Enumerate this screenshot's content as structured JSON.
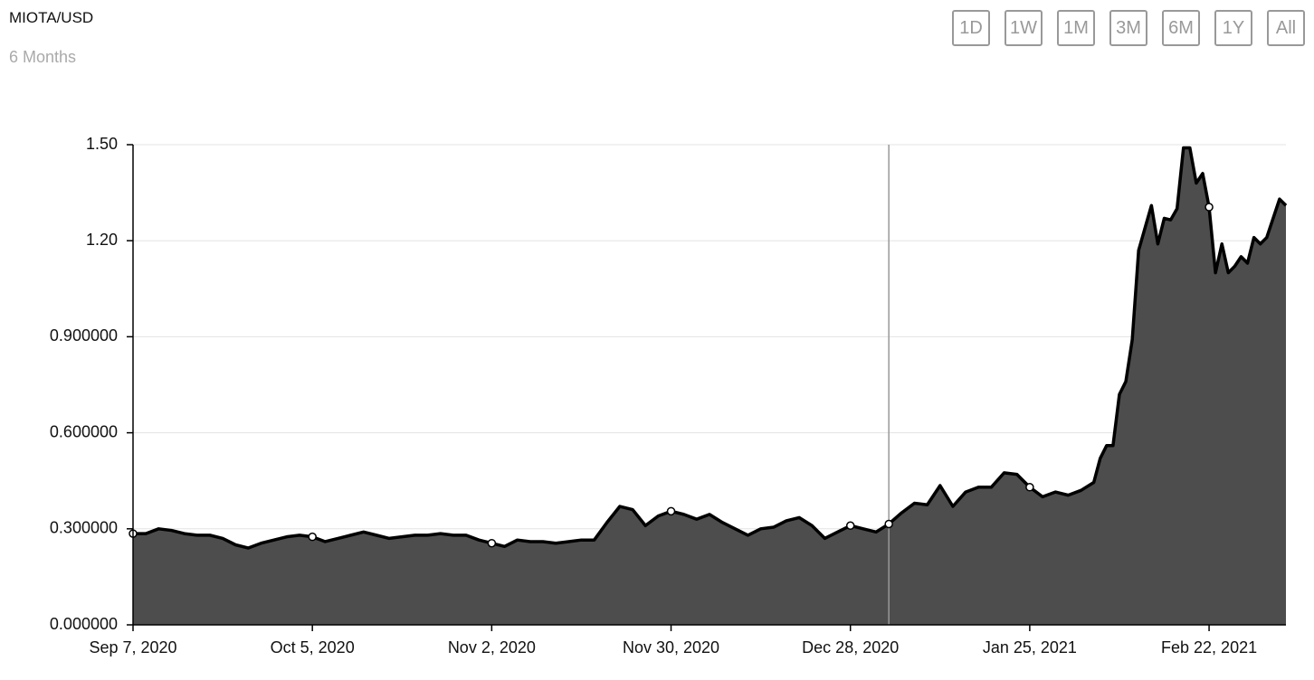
{
  "controls": {
    "range_buttons": [
      "1D",
      "1W",
      "1M",
      "3M",
      "6M",
      "1Y",
      "All"
    ]
  },
  "chart_data": {
    "type": "area",
    "title": "MIOTA/USD",
    "subtitle": "6 Months",
    "x": [
      "2020-09-07",
      "2020-09-09",
      "2020-09-11",
      "2020-09-13",
      "2020-09-15",
      "2020-09-17",
      "2020-09-19",
      "2020-09-21",
      "2020-09-23",
      "2020-09-25",
      "2020-09-27",
      "2020-09-29",
      "2020-10-01",
      "2020-10-03",
      "2020-10-05",
      "2020-10-07",
      "2020-10-09",
      "2020-10-11",
      "2020-10-13",
      "2020-10-15",
      "2020-10-17",
      "2020-10-19",
      "2020-10-21",
      "2020-10-23",
      "2020-10-25",
      "2020-10-27",
      "2020-10-29",
      "2020-10-31",
      "2020-11-02",
      "2020-11-04",
      "2020-11-06",
      "2020-11-08",
      "2020-11-10",
      "2020-11-12",
      "2020-11-14",
      "2020-11-16",
      "2020-11-18",
      "2020-11-20",
      "2020-11-22",
      "2020-11-24",
      "2020-11-26",
      "2020-11-28",
      "2020-11-30",
      "2020-12-02",
      "2020-12-04",
      "2020-12-06",
      "2020-12-08",
      "2020-12-10",
      "2020-12-12",
      "2020-12-14",
      "2020-12-16",
      "2020-12-18",
      "2020-12-20",
      "2020-12-22",
      "2020-12-24",
      "2020-12-26",
      "2020-12-28",
      "2020-12-30",
      "2021-01-01",
      "2021-01-03",
      "2021-01-05",
      "2021-01-07",
      "2021-01-09",
      "2021-01-11",
      "2021-01-13",
      "2021-01-15",
      "2021-01-17",
      "2021-01-19",
      "2021-01-21",
      "2021-01-23",
      "2021-01-25",
      "2021-01-27",
      "2021-01-29",
      "2021-01-31",
      "2021-02-02",
      "2021-02-04",
      "2021-02-05",
      "2021-02-06",
      "2021-02-07",
      "2021-02-08",
      "2021-02-09",
      "2021-02-10",
      "2021-02-11",
      "2021-02-12",
      "2021-02-13",
      "2021-02-14",
      "2021-02-15",
      "2021-02-16",
      "2021-02-17",
      "2021-02-18",
      "2021-02-19",
      "2021-02-20",
      "2021-02-21",
      "2021-02-22",
      "2021-02-23",
      "2021-02-24",
      "2021-02-25",
      "2021-02-26",
      "2021-02-27",
      "2021-02-28",
      "2021-03-01",
      "2021-03-02",
      "2021-03-03",
      "2021-03-04",
      "2021-03-05",
      "2021-03-06"
    ],
    "values": [
      0.285,
      0.285,
      0.3,
      0.295,
      0.285,
      0.28,
      0.28,
      0.27,
      0.25,
      0.24,
      0.255,
      0.265,
      0.275,
      0.28,
      0.275,
      0.26,
      0.27,
      0.28,
      0.29,
      0.28,
      0.27,
      0.275,
      0.28,
      0.28,
      0.285,
      0.28,
      0.28,
      0.265,
      0.255,
      0.245,
      0.265,
      0.26,
      0.26,
      0.255,
      0.26,
      0.265,
      0.265,
      0.32,
      0.37,
      0.36,
      0.31,
      0.34,
      0.355,
      0.345,
      0.33,
      0.345,
      0.32,
      0.3,
      0.28,
      0.3,
      0.305,
      0.325,
      0.335,
      0.31,
      0.27,
      0.29,
      0.31,
      0.3,
      0.29,
      0.315,
      0.35,
      0.38,
      0.375,
      0.435,
      0.37,
      0.415,
      0.43,
      0.43,
      0.475,
      0.47,
      0.43,
      0.4,
      0.415,
      0.405,
      0.42,
      0.445,
      0.52,
      0.56,
      0.56,
      0.72,
      0.76,
      0.89,
      1.17,
      1.24,
      1.31,
      1.19,
      1.27,
      1.265,
      1.3,
      1.49,
      1.49,
      1.38,
      1.41,
      1.305,
      1.1,
      1.19,
      1.1,
      1.12,
      1.15,
      1.13,
      1.21,
      1.19,
      1.21,
      1.27,
      1.33,
      1.31
    ],
    "color": "#4d4d4d",
    "line_color": "#000000",
    "xlim": [
      "2020-09-07",
      "2021-03-06"
    ],
    "xticks": [
      {
        "value": "2020-09-07",
        "label": "Sep 7, 2020"
      },
      {
        "value": "2020-10-05",
        "label": "Oct 5, 2020"
      },
      {
        "value": "2020-11-02",
        "label": "Nov 2, 2020"
      },
      {
        "value": "2020-11-30",
        "label": "Nov 30, 2020"
      },
      {
        "value": "2020-12-28",
        "label": "Dec 28, 2020"
      },
      {
        "value": "2021-01-25",
        "label": "Jan 25, 2021"
      },
      {
        "value": "2021-02-22",
        "label": "Feb 22, 2021"
      }
    ],
    "ylim": [
      0,
      1.5
    ],
    "yticks": [
      {
        "value": 0,
        "label": "0.000000"
      },
      {
        "value": 0.3,
        "label": "0.300000"
      },
      {
        "value": 0.6,
        "label": "0.600000"
      },
      {
        "value": 0.9,
        "label": "0.900000"
      },
      {
        "value": 1.2,
        "label": "1.20"
      },
      {
        "value": 1.5,
        "label": "1.50"
      }
    ],
    "grid": true,
    "crosshair_x": "2021-01-03"
  }
}
